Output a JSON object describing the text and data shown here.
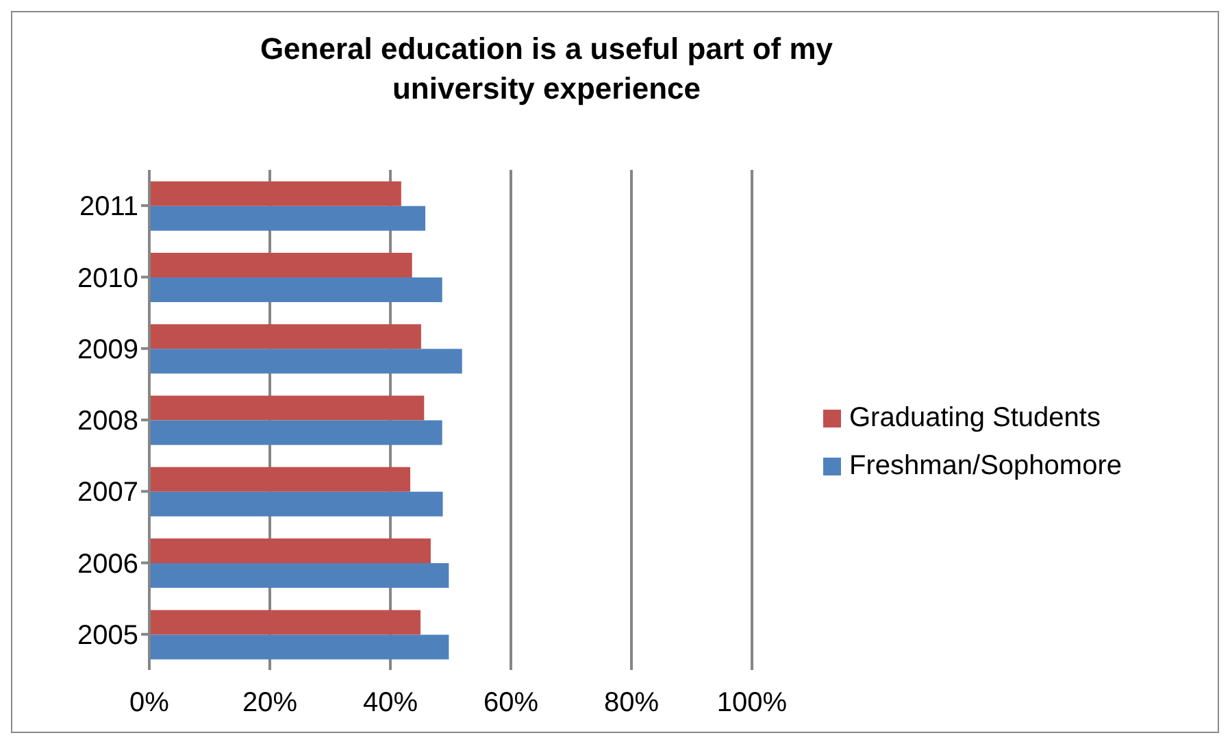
{
  "chart_data": {
    "type": "bar",
    "orientation": "horizontal",
    "title": "General education is a useful part of my university experience",
    "categories": [
      "2011",
      "2010",
      "2009",
      "2008",
      "2007",
      "2006",
      "2005"
    ],
    "series": [
      {
        "name": "Graduating Students",
        "color": "#c0504d",
        "values": [
          41.8,
          43.6,
          45.1,
          45.6,
          43.3,
          46.7,
          45.0
        ]
      },
      {
        "name": "Freshman/Sophomore",
        "color": "#4f81bd",
        "values": [
          45.8,
          48.6,
          51.9,
          48.6,
          48.7,
          49.7,
          49.7
        ]
      }
    ],
    "xlim": [
      0,
      100
    ],
    "xticks": [
      {
        "value": 0,
        "label": "0%"
      },
      {
        "value": 20,
        "label": "20%"
      },
      {
        "value": 40,
        "label": "40%"
      },
      {
        "value": 60,
        "label": "60%"
      },
      {
        "value": 80,
        "label": "80%"
      },
      {
        "value": 100,
        "label": "100%"
      }
    ],
    "grid": "x",
    "legend": "right"
  }
}
